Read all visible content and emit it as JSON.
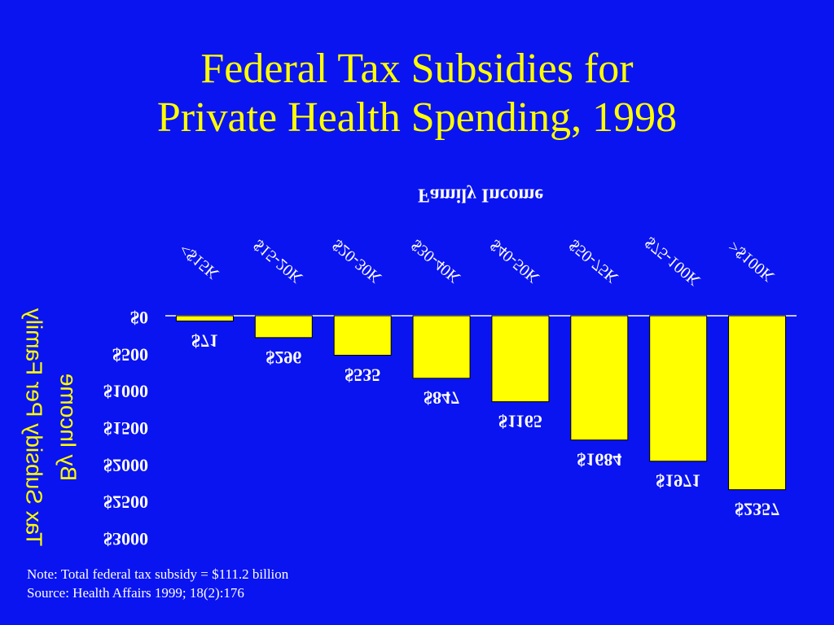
{
  "title": {
    "line1": "Federal Tax Subsidies for",
    "line2": "Private Health Spending, 1998"
  },
  "notes": {
    "note": "Note: Total federal tax subsidy = $111.2 billion",
    "source": "Source: Health Affairs 1999; 18(2):176"
  },
  "colors": {
    "background": "#0a14f0",
    "title": "#ffff00",
    "bar": "#ffff00",
    "labels": "#ffffff",
    "axis_title": "#ffff00"
  },
  "chart_data": {
    "type": "bar",
    "orientation": "inverted (mirrored text, bars extend downward)",
    "xlabel": "Family Income",
    "ylabel": "Tax Subsidy Per Family By Income",
    "categories": [
      "<$15K",
      "$15-20K",
      "$20-30K",
      "$30-40K",
      "$40-50K",
      "$50-75K",
      "$75-100K",
      ">$100K"
    ],
    "values": [
      71,
      296,
      535,
      847,
      1165,
      1684,
      1971,
      2357
    ],
    "value_labels": [
      "$71",
      "$296",
      "$535",
      "$847",
      "$1165",
      "$1684",
      "$1971",
      "$2357"
    ],
    "y_ticks": [
      "$0",
      "$500",
      "$1000",
      "$1500",
      "$2000",
      "$2500",
      "$3000"
    ],
    "y_tick_values": [
      0,
      500,
      1000,
      1500,
      2000,
      2500,
      3000
    ],
    "ylim": [
      0,
      3000
    ],
    "grid": false,
    "legend": "none"
  }
}
